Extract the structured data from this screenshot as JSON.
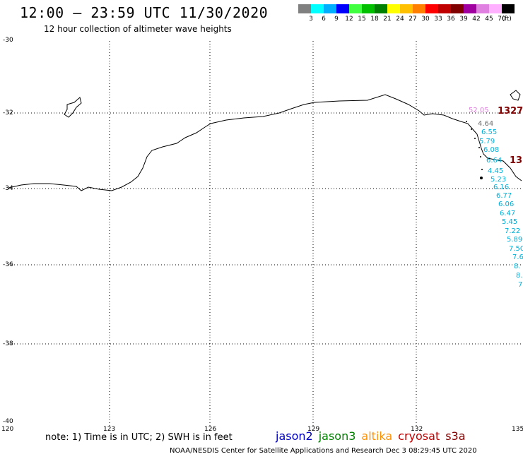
{
  "header": {
    "title": "12:00 – 23:59 UTC 11/30/2020",
    "subtitle": "12 hour collection of altimeter wave heights"
  },
  "legend": {
    "colors": [
      "#808080",
      "#00ffff",
      "#00b0ff",
      "#0000ff",
      "#40ff40",
      "#00c000",
      "#008000",
      "#ffff00",
      "#ffc000",
      "#ff8000",
      "#ff0000",
      "#c00000",
      "#800000",
      "#a000a0",
      "#e080e0",
      "#ffb0ff",
      "#000000"
    ],
    "labels": [
      "3",
      "6",
      "9",
      "12",
      "15",
      "18",
      "21",
      "24",
      "27",
      "30",
      "33",
      "36",
      "39",
      "42",
      "45",
      "70",
      "(ft)"
    ]
  },
  "axes": {
    "lat_labels": [
      "-30",
      "-32",
      "-34",
      "-36",
      "-38",
      "-40"
    ],
    "lon_labels": [
      "120",
      "123",
      "126",
      "129",
      "132",
      "135"
    ]
  },
  "readings": {
    "top_pink": "52.05",
    "top_dark": "1327",
    "top_gray": "4.64",
    "mid_dark": "13",
    "values": [
      "6.55",
      "5.79",
      "6.08",
      "6.64",
      "4.45",
      "5.23",
      "6.16",
      "6.77",
      "6.06",
      "6.47",
      "5.45",
      "7.22",
      "5.89",
      "7.50",
      "7.6",
      "8.",
      "8.",
      "7"
    ]
  },
  "footer": {
    "note": "note: 1) Time is in UTC; 2) SWH is in feet",
    "satellites": [
      {
        "name": "jason2",
        "color": "#0000c0"
      },
      {
        "name": "jason3",
        "color": "#008000"
      },
      {
        "name": "altika",
        "color": "#ff9000"
      },
      {
        "name": "cryosat",
        "color": "#c00000"
      },
      {
        "name": "s3a",
        "color": "#800000"
      }
    ],
    "credit": "NOAA/NESDIS Center for Satellite Applications and Research     Dec  3 08:29:45 UTC 2020"
  }
}
